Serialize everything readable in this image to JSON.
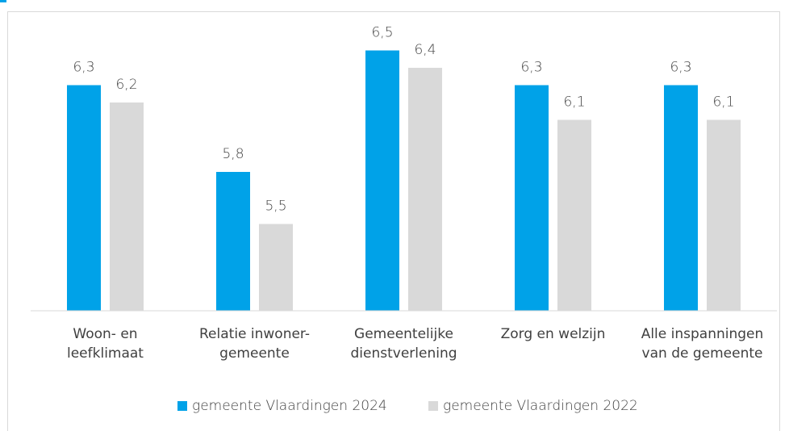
{
  "chart_data": {
    "type": "bar",
    "categories": [
      "Woon- en leefklimaat",
      "Relatie inwoner-gemeente",
      "Gemeentelijke dienstverlening",
      "Zorg en welzijn",
      "Alle inspanningen van de gemeente"
    ],
    "series": [
      {
        "name": "gemeente Vlaardingen 2024",
        "color": "#00a2e8",
        "values": [
          6.3,
          5.8,
          6.5,
          6.3,
          6.3
        ],
        "value_labels": [
          "6,3",
          "5,8",
          "6,5",
          "6,3",
          "6,3"
        ]
      },
      {
        "name": "gemeente Vlaardingen 2022",
        "color": "#d9d9d9",
        "values": [
          6.2,
          5.5,
          6.4,
          6.1,
          6.1
        ],
        "value_labels": [
          "6,2",
          "5,5",
          "6,4",
          "6,1",
          "6,1"
        ]
      }
    ],
    "ylim": [
      5,
      6.6
    ],
    "legend": "bottom"
  }
}
